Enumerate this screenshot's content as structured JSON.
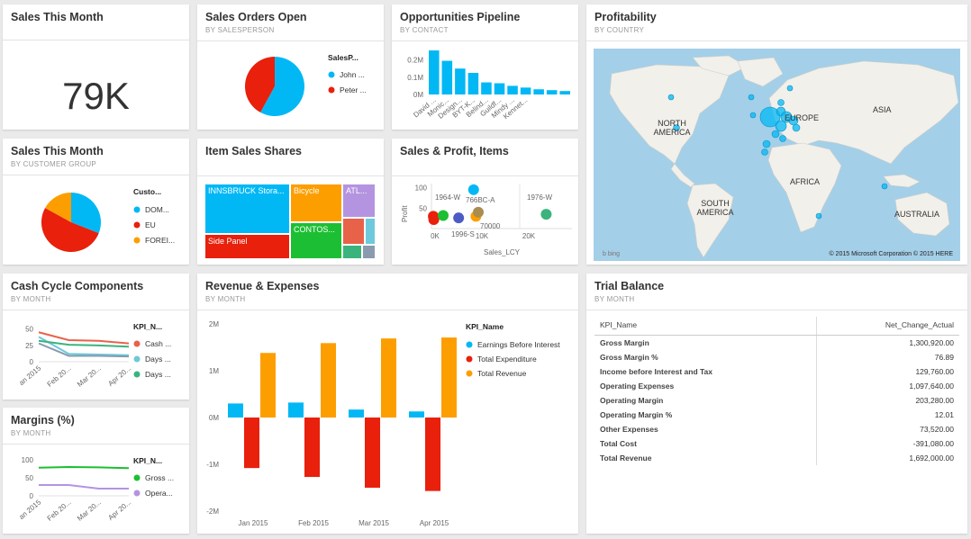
{
  "tiles": {
    "sales_month": {
      "title": "Sales This Month",
      "value": "79K"
    },
    "orders_open": {
      "title": "Sales Orders Open",
      "subtitle": "BY SALESPERSON",
      "legend_title": "SalesP...",
      "legend": [
        {
          "label": "John ...",
          "color": "#01b8f5"
        },
        {
          "label": "Peter ...",
          "color": "#e8200c"
        }
      ]
    },
    "pipeline": {
      "title": "Opportunities Pipeline",
      "subtitle": "BY CONTACT"
    },
    "profitability": {
      "title": "Profitability",
      "subtitle": "BY COUNTRY",
      "labels": {
        "na": "NORTH\nAMERICA",
        "europe": "EUROPE",
        "asia": "ASIA",
        "africa": "AFRICA",
        "sa": "SOUTH\nAMERICA",
        "aus": "AUSTRALIA"
      },
      "copyright": "© 2015 Microsoft Corporation   © 2015 HERE",
      "bing": "b bing"
    },
    "sales_customer": {
      "title": "Sales This Month",
      "subtitle": "BY CUSTOMER GROUP",
      "legend_title": "Custo...",
      "legend": [
        {
          "label": "DOM...",
          "color": "#01b8f5"
        },
        {
          "label": "EU",
          "color": "#e8200c"
        },
        {
          "label": "FOREI...",
          "color": "#fd9e00"
        }
      ]
    },
    "item_shares": {
      "title": "Item Sales Shares",
      "cells": {
        "innsbruck": "INNSBRUCK Stora...",
        "bicycle": "Bicycle",
        "atl": "ATL...",
        "contos": "CONTOS...",
        "side": "Side Panel"
      }
    },
    "sales_profit": {
      "title": "Sales & Profit, Items"
    },
    "cash_cycle": {
      "title": "Cash Cycle Components",
      "subtitle": "BY MONTH",
      "legend_title": "KPI_N...",
      "legend": [
        {
          "label": "Cash ...",
          "color": "#e8624a"
        },
        {
          "label": "Days ...",
          "color": "#6ec9dc"
        },
        {
          "label": "Days ...",
          "color": "#3bb37d"
        }
      ]
    },
    "margins": {
      "title": "Margins (%)",
      "subtitle": "BY MONTH",
      "legend_title": "KPI_N...",
      "legend": [
        {
          "label": "Gross ...",
          "color": "#1cbf33"
        },
        {
          "label": "Opera...",
          "color": "#b494e0"
        }
      ]
    },
    "rev_exp": {
      "title": "Revenue & Expenses",
      "subtitle": "BY MONTH"
    },
    "trial": {
      "title": "Trial Balance",
      "subtitle": "BY MONTH",
      "col1": "KPI_Name",
      "col2": "Net_Change_Actual",
      "rows": [
        {
          "name": "Gross Margin",
          "value": "1,300,920.00"
        },
        {
          "name": "Gross Margin %",
          "value": "76.89"
        },
        {
          "name": "Income before Interest and Tax",
          "value": "129,760.00"
        },
        {
          "name": "Operating Expenses",
          "value": "1,097,640.00"
        },
        {
          "name": "Operating Margin",
          "value": "203,280.00"
        },
        {
          "name": "Operating Margin %",
          "value": "12.01"
        },
        {
          "name": "Other Expenses",
          "value": "73,520.00"
        },
        {
          "name": "Total Cost",
          "value": "-391,080.00"
        },
        {
          "name": "Total Revenue",
          "value": "1,692,000.00"
        }
      ]
    }
  },
  "chart_data": [
    {
      "id": "orders_open",
      "type": "pie",
      "slices": [
        {
          "label": "John ...",
          "value": 58,
          "color": "#01b8f5"
        },
        {
          "label": "Peter ...",
          "value": 42,
          "color": "#e8200c"
        }
      ]
    },
    {
      "id": "pipeline",
      "type": "bar",
      "categories": [
        "David ...",
        "Monic...",
        "Design...",
        "BYT-K...",
        "Belind...",
        "Guildf...",
        "Mindy ...",
        "Kennet...",
        "",
        "",
        ""
      ],
      "values": [
        0.255,
        0.195,
        0.15,
        0.125,
        0.07,
        0.065,
        0.05,
        0.04,
        0.03,
        0.025,
        0.02
      ],
      "ylim": [
        0,
        0.25
      ],
      "yticks": [
        "0M",
        "0.1M",
        "0.2M"
      ],
      "color": "#01b8f5"
    },
    {
      "id": "sales_customer",
      "type": "pie",
      "slices": [
        {
          "label": "DOM...",
          "value": 31,
          "color": "#01b8f5"
        },
        {
          "label": "EU",
          "value": 52,
          "color": "#e8200c"
        },
        {
          "label": "FOREI...",
          "value": 17,
          "color": "#fd9e00"
        }
      ]
    },
    {
      "id": "item_shares",
      "type": "treemap",
      "cells": [
        {
          "label": "INNSBRUCK Stora...",
          "color": "#01b8f5"
        },
        {
          "label": "Bicycle",
          "color": "#fd9e00"
        },
        {
          "label": "ATL...",
          "color": "#b494e0"
        },
        {
          "label": "CONTOS...",
          "color": "#1cbf33"
        },
        {
          "label": "Side Panel",
          "color": "#e8200c"
        }
      ]
    },
    {
      "id": "sales_profit",
      "type": "scatter",
      "xlabel": "Sales_LCY",
      "ylabel": "Profit",
      "xticks": [
        "0K",
        "10K",
        "20K"
      ],
      "yticks": [
        "0",
        "50",
        "100"
      ],
      "xlim": [
        0,
        30000
      ],
      "ylim": [
        0,
        110
      ],
      "annotations": [
        "1964-W",
        "766BC-A",
        "1976-W",
        "1996-S",
        "70000"
      ],
      "points": [
        {
          "x": 400,
          "y": 30,
          "color": "#e8200c"
        },
        {
          "x": 500,
          "y": 22,
          "color": "#e8200c"
        },
        {
          "x": 2500,
          "y": 32,
          "color": "#1cbf33"
        },
        {
          "x": 5800,
          "y": 26,
          "color": "#4c5cc5"
        },
        {
          "x": 9000,
          "y": 95,
          "color": "#01b8f5"
        },
        {
          "x": 9500,
          "y": 30,
          "color": "#fd9e00"
        },
        {
          "x": 10000,
          "y": 40,
          "color": "#a98d4e"
        },
        {
          "x": 24500,
          "y": 35,
          "color": "#3bb37d"
        }
      ]
    },
    {
      "id": "cash_cycle",
      "type": "line",
      "x": [
        "an 2015",
        "Feb 20...",
        "Mar 20...",
        "Apr 20..."
      ],
      "yticks": [
        "0",
        "25",
        "50"
      ],
      "ylim": [
        0,
        55
      ],
      "series": [
        {
          "name": "Cash ...",
          "values": [
            45,
            33,
            32,
            28
          ],
          "color": "#e8624a"
        },
        {
          "name": "Days ...",
          "values": [
            38,
            12,
            11,
            10
          ],
          "color": "#6ec9dc"
        },
        {
          "name": "Days ...",
          "values": [
            32,
            26,
            25,
            23
          ],
          "color": "#3bb37d"
        },
        {
          "name": "",
          "values": [
            28,
            9,
            9,
            8
          ],
          "color": "#8a9bb0"
        }
      ]
    },
    {
      "id": "margins",
      "type": "line",
      "x": [
        "an 2015",
        "Feb 20...",
        "Mar 20...",
        "Apr 20..."
      ],
      "yticks": [
        "0",
        "50",
        "100"
      ],
      "ylim": [
        0,
        100
      ],
      "series": [
        {
          "name": "Gross ...",
          "values": [
            78,
            80,
            79,
            77
          ],
          "color": "#1cbf33"
        },
        {
          "name": "Opera...",
          "values": [
            30,
            30,
            20,
            20
          ],
          "color": "#b494e0"
        }
      ]
    },
    {
      "id": "rev_exp",
      "type": "bar",
      "categories": [
        "Jan 2015",
        "Feb 2015",
        "Mar 2015",
        "Apr 2015"
      ],
      "yticks": [
        "-2M",
        "-1M",
        "0M",
        "1M",
        "2M"
      ],
      "ylim": [
        -2,
        2
      ],
      "legend_title": "KPI_Name",
      "series": [
        {
          "name": "Earnings Before Interest",
          "values": [
            0.3,
            0.32,
            0.17,
            0.13
          ],
          "color": "#01b8f5"
        },
        {
          "name": "Total Expenditure",
          "values": [
            -1.08,
            -1.27,
            -1.5,
            -1.57
          ],
          "color": "#e8200c"
        },
        {
          "name": "Total Revenue",
          "values": [
            1.38,
            1.59,
            1.69,
            1.71
          ],
          "color": "#fd9e00"
        }
      ]
    }
  ]
}
